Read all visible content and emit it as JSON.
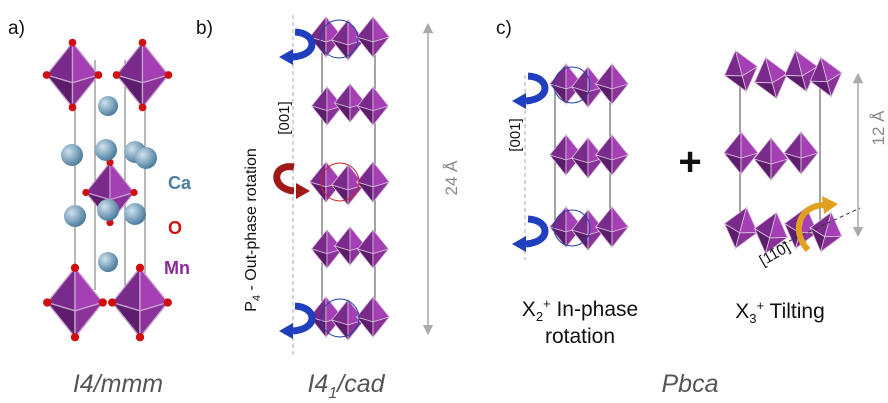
{
  "panels": [
    {
      "label": "a)",
      "space_group": "I4/mmm",
      "legend": [
        "Ca",
        "O",
        "Mn"
      ]
    },
    {
      "label": "b)",
      "space_group": {
        "main": "I4",
        "sub": "1",
        "rest": "/cad"
      },
      "axis": "[001]",
      "rotation": {
        "main": "P",
        "sub": "4",
        "rest": " - Out-phase rotation"
      },
      "length": "24 Å"
    },
    {
      "label": "c)",
      "space_group": "Pbca",
      "axis": "[001]",
      "length": "12 Å",
      "plus": "+",
      "mode1": {
        "main": "X",
        "sub": "2",
        "sup": "+",
        "rest": " In-phase",
        "line2": "rotation"
      },
      "mode2": {
        "main": "X",
        "sub": "3",
        "sup": "+",
        "rest": " Tilting"
      },
      "axis2": "[110]"
    }
  ]
}
